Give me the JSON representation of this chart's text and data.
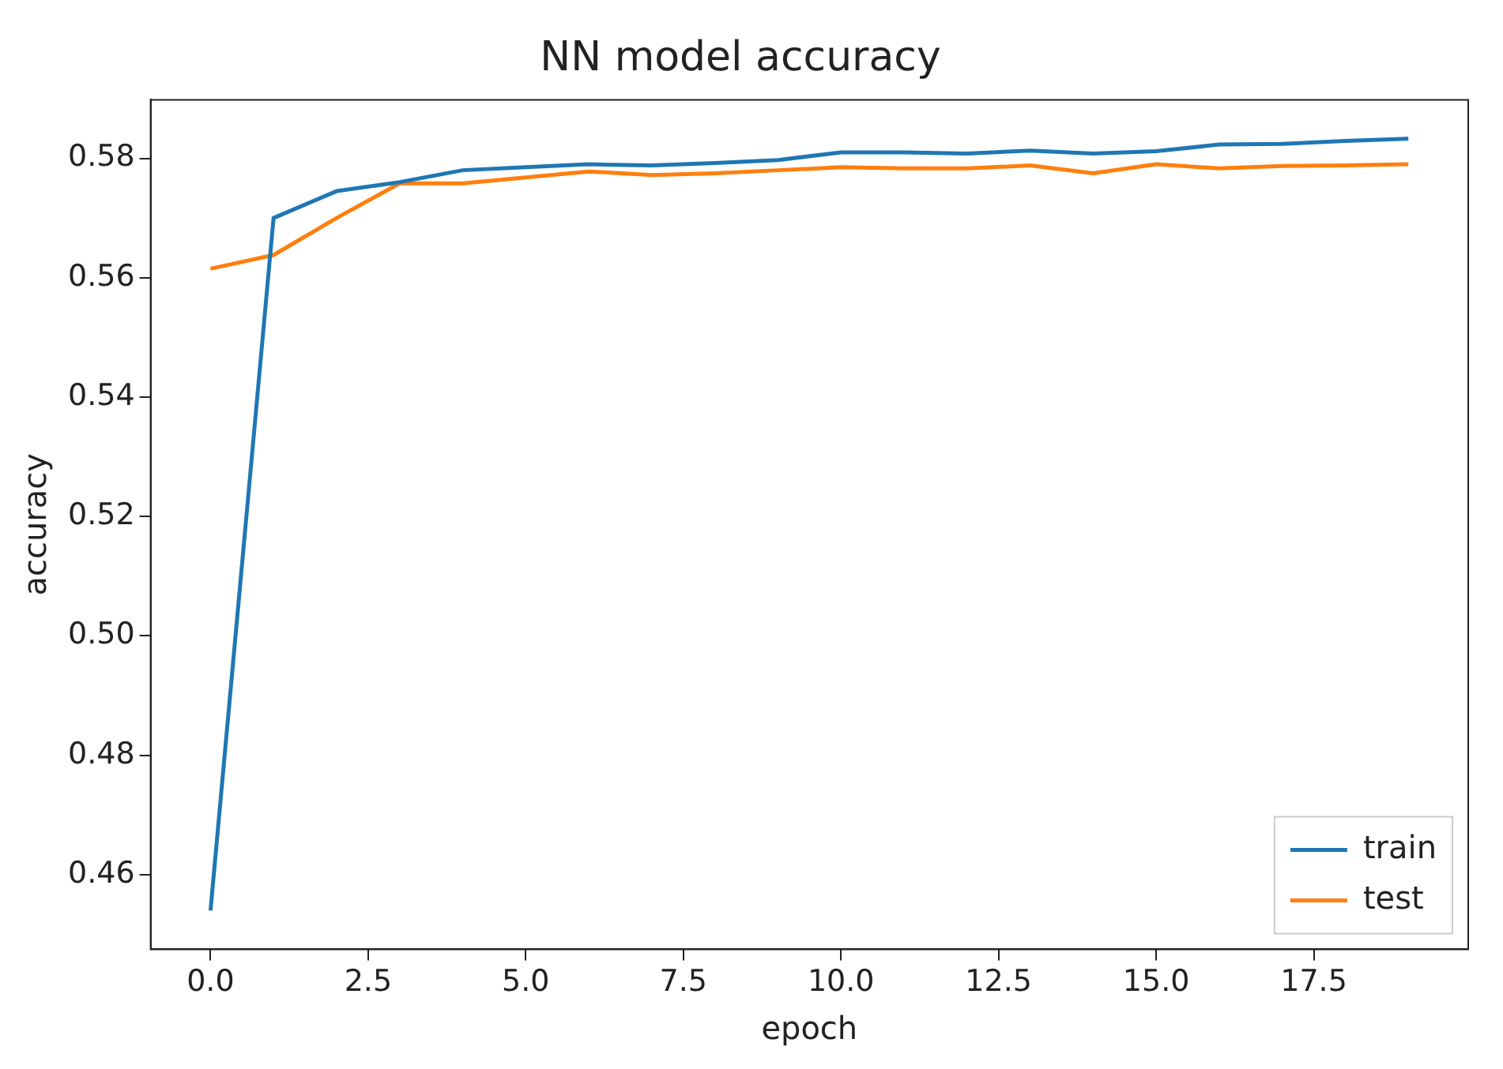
{
  "chart_data": {
    "type": "line",
    "title": "NN model accuracy",
    "xlabel": "epoch",
    "ylabel": "accuracy",
    "x": [
      0,
      1,
      2,
      3,
      4,
      5,
      6,
      7,
      8,
      9,
      10,
      11,
      12,
      13,
      14,
      15,
      16,
      17,
      18,
      19
    ],
    "series": [
      {
        "name": "train",
        "color": "#1f77b4",
        "values": [
          0.454,
          0.57,
          0.5745,
          0.576,
          0.578,
          0.5785,
          0.579,
          0.5788,
          0.5792,
          0.5797,
          0.581,
          0.581,
          0.5808,
          0.5813,
          0.5808,
          0.5812,
          0.5823,
          0.5824,
          0.5829,
          0.5833
        ]
      },
      {
        "name": "test",
        "color": "#ff7f0e",
        "values": [
          0.5615,
          0.5638,
          0.57,
          0.5758,
          0.5758,
          0.5768,
          0.5778,
          0.5772,
          0.5775,
          0.578,
          0.5785,
          0.5783,
          0.5783,
          0.5788,
          0.5775,
          0.579,
          0.5783,
          0.5787,
          0.5788,
          0.579
        ]
      }
    ],
    "xlim": [
      -0.95,
      19.95
    ],
    "xticks": [
      {
        "value": 0,
        "label": "0.0"
      },
      {
        "value": 2.5,
        "label": "2.5"
      },
      {
        "value": 5,
        "label": "5.0"
      },
      {
        "value": 7.5,
        "label": "7.5"
      },
      {
        "value": 10,
        "label": "10.0"
      },
      {
        "value": 12.5,
        "label": "12.5"
      },
      {
        "value": 15,
        "label": "15.0"
      },
      {
        "value": 17.5,
        "label": "17.5"
      }
    ],
    "ylim": [
      0.4475,
      0.5898
    ],
    "yticks": [
      {
        "value": 0.46,
        "label": "0.46"
      },
      {
        "value": 0.48,
        "label": "0.48"
      },
      {
        "value": 0.5,
        "label": "0.50"
      },
      {
        "value": 0.52,
        "label": "0.52"
      },
      {
        "value": 0.54,
        "label": "0.54"
      },
      {
        "value": 0.56,
        "label": "0.56"
      },
      {
        "value": 0.58,
        "label": "0.58"
      }
    ],
    "grid": false,
    "legend": "bottom right",
    "marker": "none",
    "line_style": "solid"
  }
}
